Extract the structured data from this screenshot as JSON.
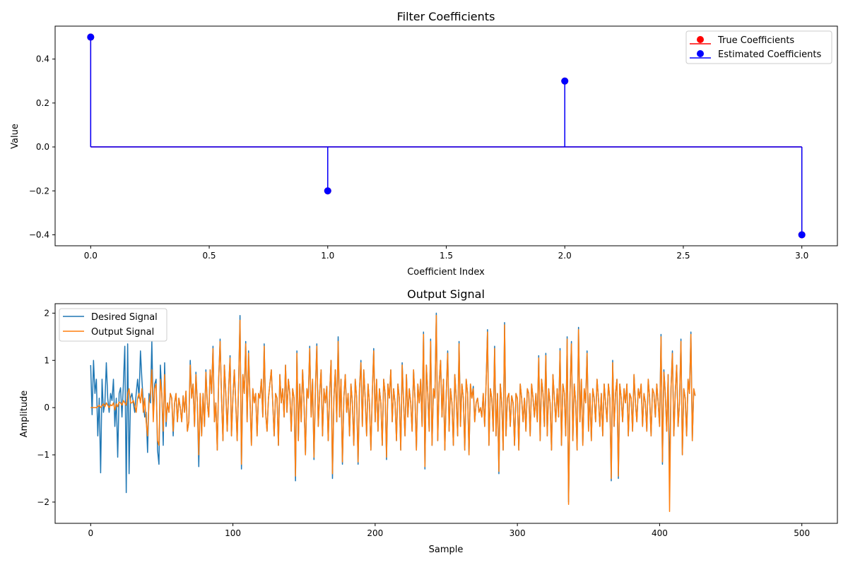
{
  "chart_data": [
    {
      "type": "stem",
      "title": "Filter Coefficients",
      "xlabel": "Coefficient Index",
      "ylabel": "Value",
      "xlim": [
        -0.15,
        3.15
      ],
      "ylim": [
        -0.45,
        0.55
      ],
      "xticks": [
        0.0,
        0.5,
        1.0,
        1.5,
        2.0,
        2.5,
        3.0
      ],
      "xtick_labels": [
        "0.0",
        "0.5",
        "1.0",
        "1.5",
        "2.0",
        "2.5",
        "3.0"
      ],
      "yticks": [
        -0.4,
        -0.2,
        0.0,
        0.2,
        0.4
      ],
      "ytick_labels": [
        "−0.4",
        "−0.2",
        "0.0",
        "0.2",
        "0.4"
      ],
      "grid": false,
      "legend_position": "top-right",
      "baseline": 0.0,
      "series": [
        {
          "name": "True Coefficients",
          "color": "#ff0000",
          "x": [
            0,
            1,
            2,
            3
          ],
          "values": [
            0.5,
            -0.2,
            0.3,
            -0.4
          ]
        },
        {
          "name": "Estimated Coefficients",
          "color": "#0000ff",
          "x": [
            0,
            1,
            2,
            3
          ],
          "values": [
            0.5,
            -0.2,
            0.3,
            -0.4
          ]
        }
      ]
    },
    {
      "type": "line",
      "title": "Output Signal",
      "xlabel": "Sample",
      "ylabel": "Amplitude",
      "xlim": [
        -25,
        525
      ],
      "ylim": [
        -2.45,
        2.2
      ],
      "xticks": [
        0,
        100,
        200,
        300,
        400,
        500
      ],
      "xtick_labels": [
        "0",
        "100",
        "200",
        "300",
        "400",
        "500"
      ],
      "yticks": [
        -2,
        -1,
        0,
        1,
        2
      ],
      "ytick_labels": [
        "−2",
        "−1",
        "0",
        "1",
        "2"
      ],
      "grid": false,
      "legend_position": "top-left",
      "series": [
        {
          "name": "Desired Signal",
          "color": "#1f77b4",
          "x_start": 0,
          "x_step": 1,
          "values": [
            0.9,
            -0.15,
            1.0,
            0.3,
            0.6,
            -0.6,
            0.2,
            -1.38,
            0.6,
            -0.1,
            0.1,
            0.95,
            0.2,
            -0.1,
            0.3,
            0.15,
            0.6,
            -0.4,
            0.2,
            -1.05,
            0.3,
            0.42,
            -0.2,
            0.5,
            1.3,
            -1.8,
            1.35,
            -1.4,
            0.2,
            0.3,
            0.1,
            -0.1,
            0.3,
            0.6,
            0.2,
            1.2,
            0.6,
            0.1,
            -0.2,
            -0.1,
            -0.95,
            0.3,
            0.1,
            1.4,
            -0.2,
            0.5,
            0.6,
            -0.9,
            -1.2,
            0.9,
            0.3,
            -0.8,
            0.95,
            -0.4,
            0.1,
            -0.1,
            0.3,
            0.2,
            -0.6,
            0.1,
            0.3,
            -0.3,
            0.2,
            0.0,
            -0.3,
            0.25,
            -0.1,
            0.35,
            -0.5,
            -0.3,
            1.0,
            0.2,
            0.5,
            -0.4,
            0.75,
            0.1,
            -1.25,
            0.3,
            -0.6,
            0.3,
            -0.4,
            0.8,
            0.1,
            -0.2,
            0.8,
            0.3,
            1.3,
            -0.3,
            0.1,
            -0.9,
            0.6,
            1.45,
            0.2,
            -0.7,
            0.9,
            0.3,
            -0.5,
            0.4,
            1.1,
            -0.6,
            0.2,
            0.8,
            0.1,
            -0.7,
            0.5,
            1.95,
            -1.3,
            0.7,
            0.3,
            1.4,
            -0.3,
            1.2,
            0.2,
            -0.8,
            0.4,
            0.1,
            0.3,
            -0.6,
            0.3,
            0.2,
            0.6,
            -0.2,
            1.35,
            -0.1,
            -0.5,
            0.2,
            0.5,
            0.8,
            0.1,
            -0.6,
            0.3,
            0.2,
            -0.8,
            0.7,
            0.1,
            0.4,
            -0.2,
            0.9,
            -0.1,
            0.6,
            0.3,
            -0.5,
            0.4,
            0.2,
            -1.55,
            1.2,
            -0.7,
            0.5,
            -0.3,
            0.8,
            0.1,
            -1.0,
            0.4,
            0.2,
            1.3,
            -0.2,
            0.6,
            -1.1,
            0.4,
            1.35,
            -0.4,
            0.3,
            0.8,
            -0.6,
            0.4,
            0.1,
            0.45,
            -0.7,
            0.3,
            1.0,
            -1.5,
            0.2,
            0.8,
            -0.3,
            1.5,
            -0.2,
            0.6,
            -1.2,
            0.2,
            0.7,
            -0.1,
            0.3,
            -0.6,
            0.5,
            0.1,
            -0.8,
            0.6,
            0.2,
            -1.2,
            0.4,
            1.0,
            -0.4,
            0.8,
            0.2,
            -0.6,
            0.5,
            0.1,
            -0.9,
            0.3,
            1.25,
            -0.3,
            0.6,
            -0.5,
            0.4,
            0.1,
            -0.8,
            0.6,
            0.3,
            -1.1,
            0.5,
            0.2,
            0.8,
            -0.3,
            0.4,
            0.1,
            -0.7,
            0.5,
            0.2,
            -0.9,
            0.95,
            0.1,
            -0.6,
            0.7,
            -0.2,
            0.4,
            0.1,
            -0.5,
            0.8,
            0.2,
            -0.9,
            0.5,
            0.1,
            0.6,
            -0.4,
            1.6,
            -1.3,
            0.9,
            0.3,
            -0.5,
            1.45,
            -0.8,
            0.4,
            0.2,
            2.0,
            -0.7,
            0.5,
            1.0,
            -0.2,
            0.6,
            -0.9,
            0.3,
            1.2,
            -0.5,
            0.4,
            0.1,
            -0.8,
            0.7,
            0.2,
            -0.6,
            1.4,
            -0.4,
            0.5,
            0.2,
            -0.9,
            0.6,
            0.3,
            -1.0,
            0.5,
            0.2,
            0.45,
            -0.3,
            0.1,
            0.2,
            -0.1,
            0.0,
            -0.2,
            0.3,
            -0.4,
            0.5,
            1.65,
            -0.8,
            0.4,
            0.2,
            -0.5,
            1.3,
            -0.6,
            0.3,
            -1.4,
            0.5,
            0.1,
            -0.9,
            1.8,
            -0.6,
            0.2,
            0.3,
            -0.4,
            0.25,
            0.1,
            -0.8,
            0.3,
            0.2,
            -0.9,
            0.5,
            0.2,
            -0.3,
            0.2,
            -0.5,
            0.4,
            0.3,
            -0.6,
            0.5,
            0.2,
            -0.2,
            0.3,
            -0.3,
            1.1,
            -0.7,
            0.6,
            0.3,
            -0.4,
            1.15,
            -0.6,
            0.4,
            0.1,
            -0.9,
            0.7,
            0.2,
            -0.3,
            0.4,
            -0.2,
            1.25,
            -0.8,
            0.5,
            0.3,
            -0.6,
            1.5,
            -2.0,
            0.3,
            1.4,
            -0.7,
            0.5,
            0.1,
            -0.9,
            1.7,
            -0.3,
            0.6,
            -0.8,
            0.4,
            0.1,
            1.2,
            -0.5,
            0.3,
            -0.7,
            0.4,
            0.2,
            -0.3,
            0.6,
            0.2,
            -0.4,
            0.3,
            -0.6,
            0.5,
            0.1,
            -0.3,
            0.5,
            0.2,
            -1.55,
            1.0,
            -0.4,
            0.3,
            0.6,
            -1.5,
            0.5,
            0.2,
            -0.3,
            0.4,
            0.1,
            0.5,
            -0.6,
            0.3,
            0.2,
            -0.5,
            0.7,
            0.1,
            -0.3,
            0.4,
            0.2,
            0.5,
            -0.4,
            0.3,
            0.1,
            -0.5,
            0.6,
            0.2,
            -0.6,
            0.4,
            0.3,
            -0.2,
            0.5,
            0.1,
            -0.4,
            1.55,
            -1.2,
            0.8,
            0.3,
            -0.5,
            0.7,
            -1.5,
            0.4,
            1.2,
            -0.6,
            0.3,
            0.9,
            -0.4,
            0.1,
            1.45,
            -1.0,
            0.4,
            0.2,
            -0.6,
            0.6,
            0.3,
            1.6,
            -0.7,
            0.4,
            0.25
          ]
        },
        {
          "name": "Output Signal",
          "color": "#ff7f0e",
          "x_start": 0,
          "x_step": 1,
          "values": [
            0.0,
            0.0,
            0.0,
            0.0,
            0.0,
            0.02,
            0.05,
            0.0,
            0.04,
            0.08,
            0.02,
            0.1,
            0.05,
            0.0,
            0.06,
            0.04,
            0.1,
            -0.05,
            0.08,
            0.02,
            0.12,
            0.1,
            0.05,
            0.15,
            0.1,
            0.05,
            0.3,
            0.4,
            0.1,
            0.1,
            0.15,
            0.05,
            -0.1,
            0.2,
            0.3,
            0.1,
            0.4,
            -0.1,
            0.2,
            -0.3,
            -0.6,
            0.1,
            0.3,
            0.8,
            -0.3,
            0.4,
            0.5,
            -0.7,
            -0.8,
            0.6,
            0.3,
            -0.5,
            0.7,
            -0.3,
            0.1,
            -0.1,
            0.3,
            0.2,
            -0.5,
            0.1,
            0.3,
            -0.3,
            0.2,
            0.0,
            -0.3,
            0.25,
            -0.1,
            0.35,
            -0.5,
            -0.3,
            0.9,
            0.2,
            0.5,
            -0.4,
            0.7,
            0.1,
            -1.0,
            0.3,
            -0.6,
            0.3,
            -0.4,
            0.75,
            0.1,
            -0.2,
            0.8,
            0.3,
            1.25,
            -0.3,
            0.1,
            -0.9,
            0.6,
            1.4,
            0.2,
            -0.7,
            0.9,
            0.3,
            -0.5,
            0.4,
            1.05,
            -0.6,
            0.2,
            0.8,
            0.1,
            -0.7,
            0.5,
            1.85,
            -1.2,
            0.7,
            0.3,
            1.35,
            -0.3,
            1.15,
            0.2,
            -0.8,
            0.4,
            0.1,
            0.3,
            -0.6,
            0.3,
            0.2,
            0.6,
            -0.2,
            1.3,
            -0.1,
            -0.5,
            0.2,
            0.5,
            0.8,
            0.1,
            -0.6,
            0.3,
            0.2,
            -0.8,
            0.7,
            0.1,
            0.4,
            -0.2,
            0.9,
            -0.1,
            0.6,
            0.3,
            -0.5,
            0.4,
            0.2,
            -1.45,
            1.15,
            -0.7,
            0.5,
            -0.3,
            0.8,
            0.1,
            -1.0,
            0.4,
            0.2,
            1.25,
            -0.2,
            0.6,
            -1.05,
            0.4,
            1.3,
            -0.4,
            0.3,
            0.8,
            -0.6,
            0.4,
            0.1,
            0.45,
            -0.7,
            0.3,
            1.0,
            -1.4,
            0.2,
            0.8,
            -0.3,
            1.4,
            -0.2,
            0.6,
            -1.15,
            0.2,
            0.7,
            -0.1,
            0.3,
            -0.6,
            0.5,
            0.1,
            -0.8,
            0.6,
            0.2,
            -1.15,
            0.4,
            0.95,
            -0.4,
            0.8,
            0.2,
            -0.6,
            0.5,
            0.1,
            -0.9,
            0.3,
            1.2,
            -0.3,
            0.6,
            -0.5,
            0.4,
            0.1,
            -0.8,
            0.6,
            0.3,
            -1.05,
            0.5,
            0.2,
            0.8,
            -0.3,
            0.4,
            0.1,
            -0.7,
            0.5,
            0.2,
            -0.9,
            0.9,
            0.1,
            -0.6,
            0.7,
            -0.2,
            0.4,
            0.1,
            -0.5,
            0.8,
            0.2,
            -0.9,
            0.5,
            0.1,
            0.6,
            -0.4,
            1.55,
            -1.25,
            0.9,
            0.3,
            -0.5,
            1.4,
            -0.8,
            0.4,
            0.2,
            1.95,
            -0.7,
            0.5,
            1.0,
            -0.2,
            0.6,
            -0.9,
            0.3,
            1.15,
            -0.5,
            0.4,
            0.1,
            -0.8,
            0.7,
            0.2,
            -0.6,
            1.35,
            -0.4,
            0.5,
            0.2,
            -0.9,
            0.6,
            0.3,
            -1.0,
            0.5,
            0.2,
            0.4,
            -0.3,
            0.1,
            0.2,
            -0.1,
            0.0,
            -0.2,
            0.3,
            -0.4,
            0.5,
            1.6,
            -0.8,
            0.4,
            0.2,
            -0.5,
            1.25,
            -0.6,
            0.3,
            -1.35,
            0.5,
            0.1,
            -0.9,
            1.75,
            -0.6,
            0.2,
            0.3,
            -0.4,
            0.25,
            0.1,
            -0.8,
            0.3,
            0.2,
            -0.9,
            0.5,
            0.2,
            -0.3,
            0.2,
            -0.5,
            0.4,
            0.3,
            -0.6,
            0.5,
            0.2,
            -0.2,
            0.3,
            -0.3,
            1.05,
            -0.7,
            0.6,
            0.3,
            -0.4,
            1.1,
            -0.6,
            0.4,
            0.1,
            -0.9,
            0.7,
            0.2,
            -0.3,
            0.4,
            -0.2,
            1.2,
            -0.8,
            0.5,
            0.3,
            -0.6,
            1.45,
            -2.05,
            0.3,
            1.35,
            -0.7,
            0.5,
            0.1,
            -0.9,
            1.65,
            -0.3,
            0.6,
            -0.8,
            0.4,
            0.1,
            1.15,
            -0.5,
            0.3,
            -0.7,
            0.4,
            0.2,
            -0.3,
            0.6,
            0.2,
            -0.4,
            0.3,
            -0.6,
            0.5,
            0.1,
            -0.3,
            0.5,
            0.2,
            -1.5,
            0.95,
            -0.4,
            0.3,
            0.6,
            -1.45,
            0.5,
            0.2,
            -0.3,
            0.4,
            0.1,
            0.5,
            -0.6,
            0.3,
            0.2,
            -0.5,
            0.7,
            0.1,
            -0.3,
            0.4,
            0.2,
            0.5,
            -0.4,
            0.3,
            0.1,
            -0.5,
            0.6,
            0.2,
            -0.6,
            0.4,
            0.3,
            -0.2,
            0.5,
            0.1,
            -0.4,
            1.5,
            -1.15,
            0.75,
            0.3,
            -0.5,
            0.7,
            -2.2,
            0.4,
            1.15,
            -0.6,
            0.3,
            0.9,
            -0.4,
            0.1,
            1.4,
            -1.0,
            0.4,
            0.2,
            -0.6,
            0.6,
            0.3,
            1.55,
            -0.7,
            0.4,
            0.25
          ]
        }
      ]
    }
  ]
}
